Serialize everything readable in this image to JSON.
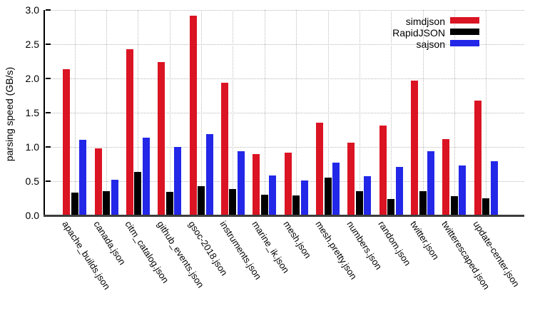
{
  "chart_data": {
    "type": "bar",
    "title": "",
    "xlabel": "",
    "ylabel": "parsing speed (GB/s)",
    "ylim": [
      0,
      3.0
    ],
    "yticks": [
      "0.0",
      "0.5",
      "1.0",
      "1.5",
      "2.0",
      "2.5",
      "3.0"
    ],
    "grid": true,
    "legend_position": "top-right",
    "categories": [
      "apache_builds.json",
      "canada.json",
      "citm_catalog.json",
      "github_events.json",
      "gsoc-2018.json",
      "instruments.json",
      "marine_ik.json",
      "mesh.json",
      "mesh.pretty.json",
      "numbers.json",
      "random.json",
      "twitter.json",
      "twitterescaped.json",
      "update-center.json"
    ],
    "series": [
      {
        "name": "simdjson",
        "color": "#db1423",
        "values": [
          2.14,
          0.98,
          2.43,
          2.24,
          2.92,
          1.94,
          0.89,
          0.91,
          1.35,
          1.06,
          1.31,
          1.97,
          1.11,
          1.68
        ]
      },
      {
        "name": "RapidJSON",
        "color": "#000000",
        "values": [
          0.33,
          0.35,
          0.63,
          0.34,
          0.42,
          0.38,
          0.3,
          0.29,
          0.55,
          0.35,
          0.23,
          0.35,
          0.28,
          0.25
        ]
      },
      {
        "name": "sajson",
        "color": "#2327e8",
        "values": [
          1.1,
          0.52,
          1.13,
          1.0,
          1.19,
          0.94,
          0.58,
          0.51,
          0.77,
          0.57,
          0.71,
          0.94,
          0.73,
          0.79
        ]
      }
    ]
  }
}
